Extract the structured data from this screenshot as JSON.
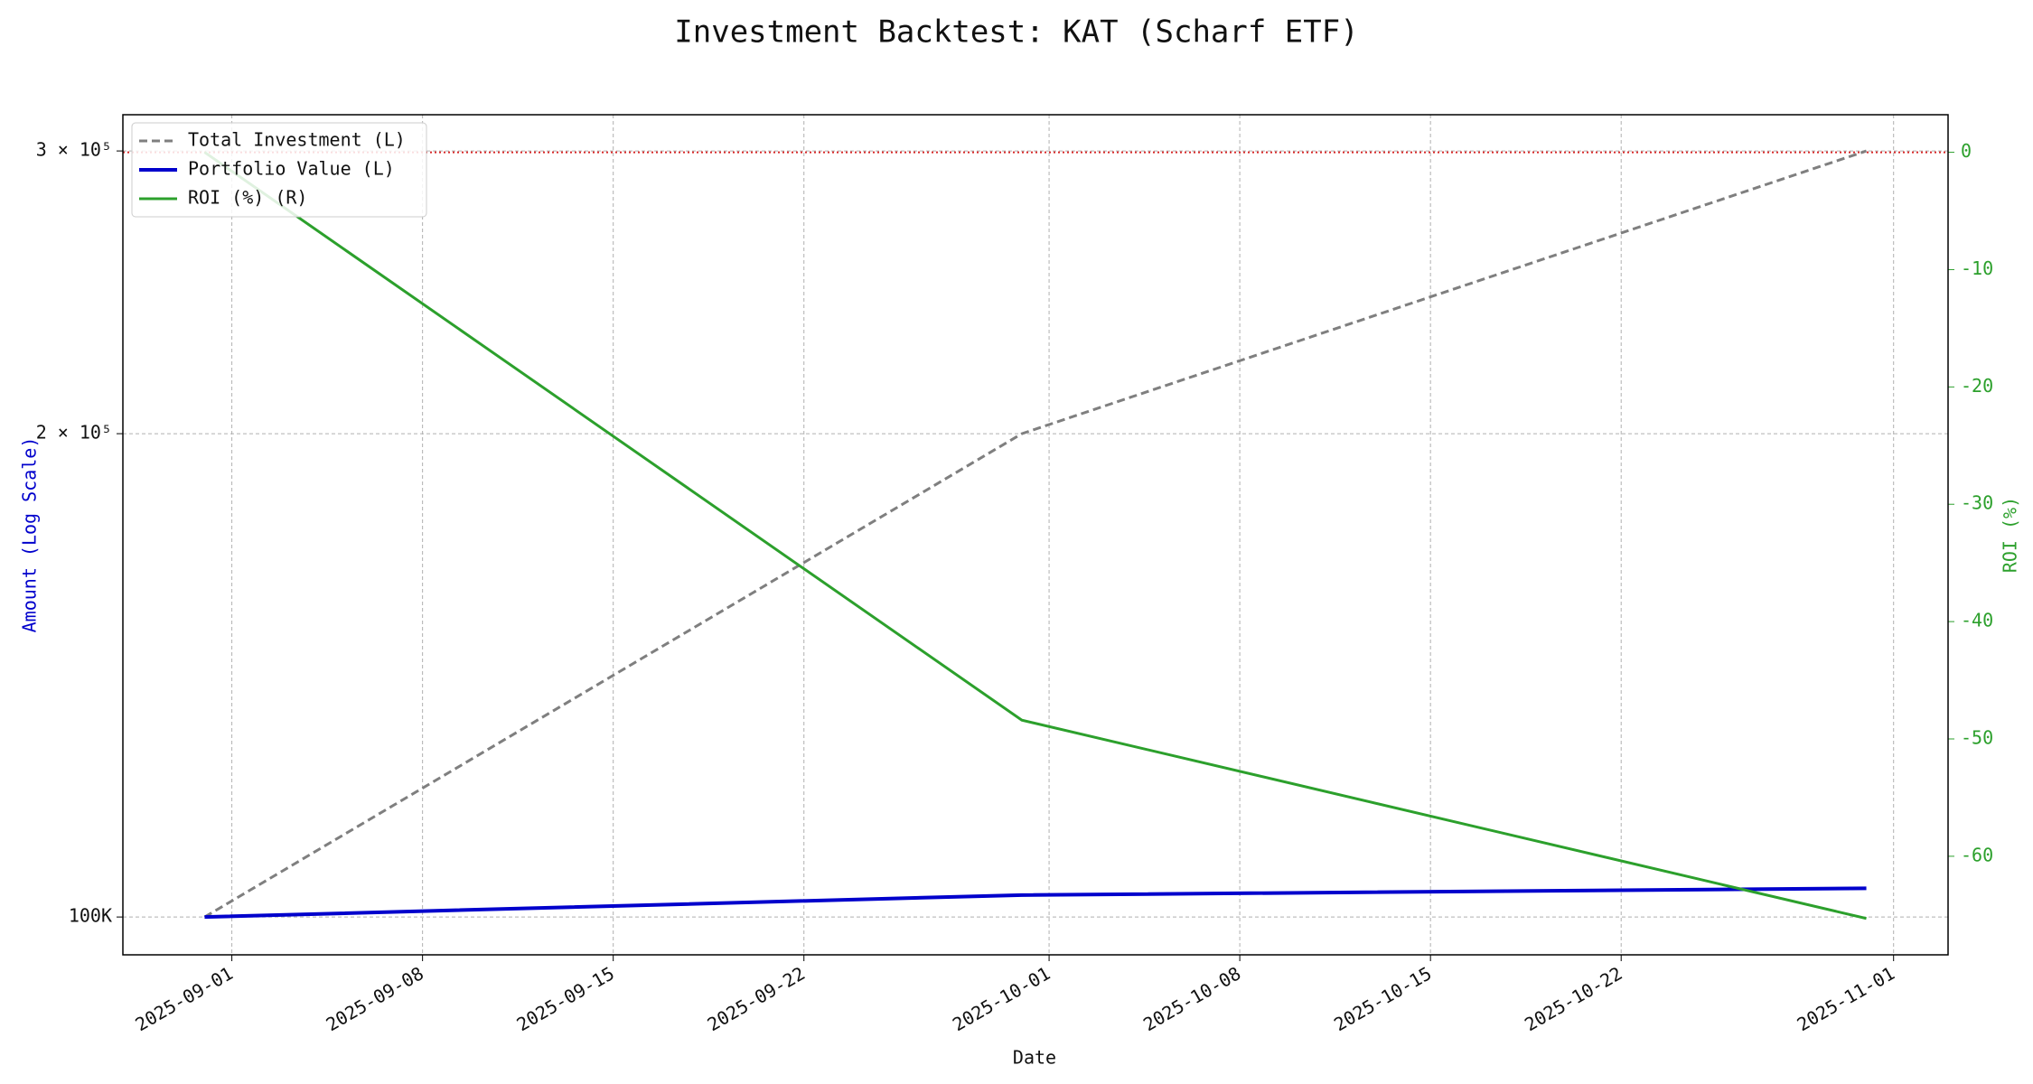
{
  "chart_data": {
    "type": "line",
    "title": "Investment Backtest: KAT (Scharf ETF)",
    "x_label": "Date",
    "y_label": "Amount (Log Scale)",
    "y2_label": "ROI (%)",
    "x": [
      "2025-08-31",
      "2025-09-30",
      "2025-10-31"
    ],
    "xlim": [
      "2025-08-28",
      "2025-11-03"
    ],
    "xticks": [
      "2025-09-01",
      "2025-09-08",
      "2025-09-15",
      "2025-09-22",
      "2025-10-01",
      "2025-10-08",
      "2025-10-15",
      "2025-10-22",
      "2025-11-01"
    ],
    "ylog": true,
    "ylim": [
      94720,
      316000
    ],
    "yticks": [
      {
        "value": 100000,
        "label": "100K"
      },
      {
        "value": 200000,
        "label": "2 × 10⁵"
      },
      {
        "value": 300000,
        "label": "3 × 10⁵"
      }
    ],
    "y2lim": [
      -68.4,
      3.2
    ],
    "y2ticks": [
      0,
      -10,
      -20,
      -30,
      -40,
      -50,
      -60
    ],
    "grid": true,
    "legend": "upper left",
    "reference_line": {
      "axis": "y2",
      "value": 0,
      "color": "#d62728"
    },
    "series": [
      {
        "name": "Total Investment (L)",
        "color": "#7f7f7f",
        "linestyle": "dashed",
        "values": [
          100000,
          200000,
          300000
        ]
      },
      {
        "name": "Portfolio Value (L)",
        "color": "#0000cc",
        "linestyle": "solid",
        "values": [
          100000,
          103200,
          104200
        ]
      },
      {
        "name": "ROI (%) (R)",
        "color": "#2ca02c",
        "linestyle": "solid",
        "axis": "y2",
        "values": [
          0,
          -48.4,
          -65.3
        ]
      }
    ]
  }
}
